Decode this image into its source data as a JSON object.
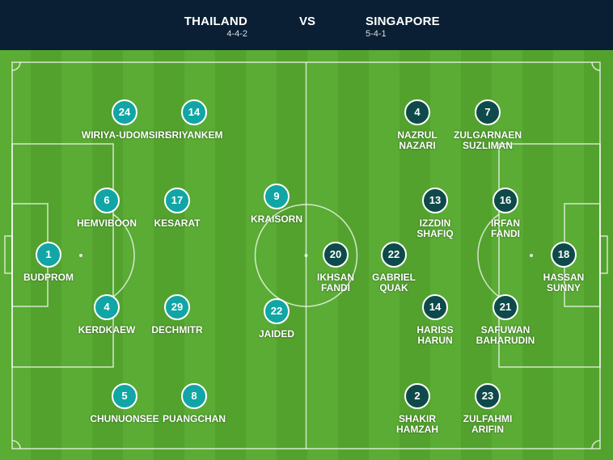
{
  "match": {
    "home": {
      "name": "THAILAND",
      "formation": "4-4-2",
      "color": "#12a5a5"
    },
    "away": {
      "name": "SINGAPORE",
      "formation": "5-4-1",
      "color": "#0f4a4a"
    },
    "vs": "VS"
  },
  "home_players": [
    {
      "number": "24",
      "name": "WIRIYA-UDOMSIRI"
    },
    {
      "number": "14",
      "name": "SRIYANKEM"
    },
    {
      "number": "6",
      "name": "HEMVIBOON"
    },
    {
      "number": "17",
      "name": "KESARAT"
    },
    {
      "number": "9",
      "name": "KRAISORN"
    },
    {
      "number": "1",
      "name": "BUDPROM"
    },
    {
      "number": "4",
      "name": "KERDKAEW"
    },
    {
      "number": "29",
      "name": "DECHMITR"
    },
    {
      "number": "22",
      "name": "JAIDED"
    },
    {
      "number": "5",
      "name": "CHUNUONSEE"
    },
    {
      "number": "8",
      "name": "PUANGCHAN"
    }
  ],
  "away_players": [
    {
      "number": "4",
      "name": "NAZRUL\nNAZARI"
    },
    {
      "number": "7",
      "name": "ZULGARNAEN\nSUZLIMAN"
    },
    {
      "number": "13",
      "name": "IZZDIN\nSHAFIQ"
    },
    {
      "number": "16",
      "name": "IRFAN\nFANDI"
    },
    {
      "number": "20",
      "name": "IKHSAN\nFANDI"
    },
    {
      "number": "22",
      "name": "GABRIEL\nQUAK"
    },
    {
      "number": "18",
      "name": "HASSAN\nSUNNY"
    },
    {
      "number": "14",
      "name": "HARISS\nHARUN"
    },
    {
      "number": "21",
      "name": "SAFUWAN\nBAHARUDIN"
    },
    {
      "number": "2",
      "name": "SHAKIR\nHAMZAH"
    },
    {
      "number": "23",
      "name": "ZULFAHMI\nARIFIN"
    }
  ]
}
